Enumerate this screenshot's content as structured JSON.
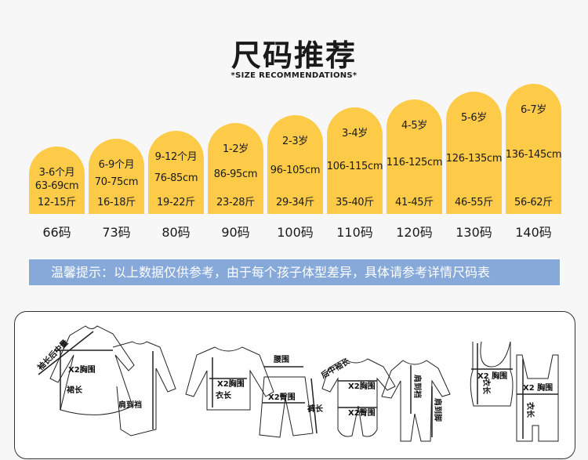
{
  "header": {
    "title": "尺码推荐",
    "subtitle": "*SIZE RECOMMENDATIONS*"
  },
  "bar_color": "#fdcb47",
  "sizes": [
    {
      "age": "3-6个月",
      "height": "63-69cm",
      "weight": "12-15斤",
      "code": "66码"
    },
    {
      "age": "6-9个月",
      "height": "70-75cm",
      "weight": "16-18斤",
      "code": "73码"
    },
    {
      "age": "9-12个月",
      "height": "76-85cm",
      "weight": "19-22斤",
      "code": "80码"
    },
    {
      "age": "1-2岁",
      "height": "86-95cm",
      "weight": "23-28斤",
      "code": "90码"
    },
    {
      "age": "2-3岁",
      "height": "96-105cm",
      "weight": "29-34斤",
      "code": "100码"
    },
    {
      "age": "3-4岁",
      "height": "106-115cm",
      "weight": "35-40斤",
      "code": "110码"
    },
    {
      "age": "4-5岁",
      "height": "116-125cm",
      "weight": "41-45斤",
      "code": "120码"
    },
    {
      "age": "5-6岁",
      "height": "126-135cm",
      "weight": "46-55斤",
      "code": "130码"
    },
    {
      "age": "6-7岁",
      "height": "136-145cm",
      "weight": "56-62斤",
      "code": "140码"
    }
  ],
  "tip": {
    "text": "温馨提示：以上数据仅供参考，由于每个孩子体型差异，具体请参考详情尺码表",
    "color": "#86a9da"
  },
  "diagram": {
    "labels": {
      "sleeve_back": "袖长后中量",
      "chest": "X2胸围",
      "skirt_len": "裙长",
      "shoulder_crotch": "肩到裆",
      "waist": "腰围",
      "hip": "X2臀围",
      "top_len": "衣长",
      "pants_len": "裤长",
      "back_sleeve": "后中袖长",
      "shoulder_crotch2": "肩到裆",
      "shoulder_foot": "肩到脚",
      "chest2": "X2 胸围",
      "len2": "衣长"
    }
  }
}
